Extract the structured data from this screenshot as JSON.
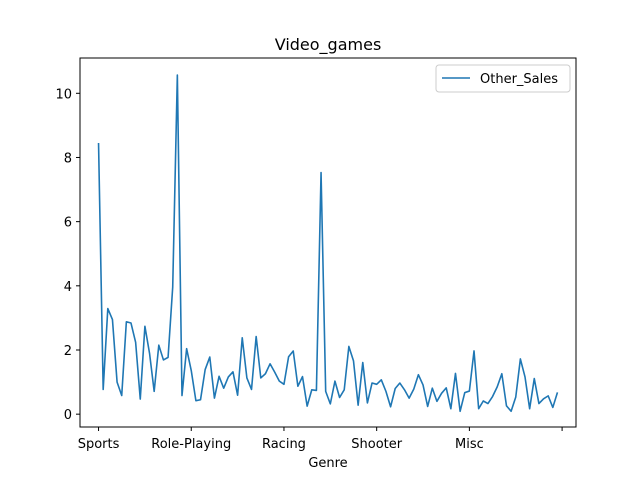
{
  "chart_data": {
    "type": "line",
    "title": "Video_games",
    "xlabel": "Genre",
    "ylabel": "",
    "ylim": [
      -0.4,
      11.1
    ],
    "yticks": [
      0,
      2,
      4,
      6,
      8,
      10
    ],
    "xlim": [
      -4.0,
      103.0
    ],
    "xticks": [
      {
        "pos": 0,
        "label": "Sports"
      },
      {
        "pos": 20,
        "label": "Role-Playing"
      },
      {
        "pos": 40,
        "label": "Racing"
      },
      {
        "pos": 60,
        "label": "Shooter"
      },
      {
        "pos": 80,
        "label": "Misc"
      },
      {
        "pos": 100,
        "label": ""
      }
    ],
    "legend": {
      "position": "top-right"
    },
    "grid": false,
    "series": [
      {
        "name": "Other_Sales",
        "color": "#1f77b4",
        "values": [
          8.45,
          0.77,
          3.29,
          2.95,
          1.0,
          0.58,
          2.88,
          2.84,
          2.24,
          0.47,
          2.74,
          1.9,
          0.71,
          2.15,
          1.69,
          1.77,
          3.96,
          10.57,
          0.58,
          2.04,
          1.36,
          0.42,
          0.45,
          1.39,
          1.78,
          0.5,
          1.18,
          0.81,
          1.16,
          1.32,
          0.59,
          2.38,
          1.13,
          0.77,
          2.42,
          1.13,
          1.26,
          1.57,
          1.31,
          1.03,
          0.93,
          1.79,
          1.97,
          0.87,
          1.17,
          0.25,
          0.76,
          0.74,
          7.53,
          0.71,
          0.32,
          1.03,
          0.52,
          0.76,
          2.11,
          1.66,
          0.28,
          1.61,
          0.35,
          0.97,
          0.93,
          1.07,
          0.71,
          0.23,
          0.8,
          0.97,
          0.76,
          0.5,
          0.78,
          1.23,
          0.91,
          0.24,
          0.81,
          0.4,
          0.65,
          0.82,
          0.17,
          1.27,
          0.09,
          0.67,
          0.72,
          1.97,
          0.17,
          0.41,
          0.33,
          0.55,
          0.85,
          1.26,
          0.26,
          0.09,
          0.53,
          1.72,
          1.16,
          0.17,
          1.11,
          0.33,
          0.48,
          0.57,
          0.21,
          0.68
        ]
      }
    ]
  }
}
